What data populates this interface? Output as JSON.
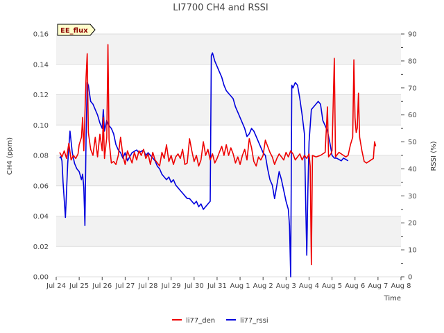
{
  "chart_data": {
    "type": "line",
    "title": "LI7700 CH4 and RSSI",
    "xlabel": "Time",
    "ylabel_left": "CH4 (ppm)",
    "ylabel_right": "RSSI (%)",
    "badge": "EE_flux",
    "x_ticks": [
      "Jul 24",
      "Jul 25",
      "Jul 26",
      "Jul 27",
      "Jul 28",
      "Jul 29",
      "Jul 30",
      "Jul 31",
      "Aug 1",
      "Aug 2",
      "Aug 3",
      "Aug 4",
      "Aug 5",
      "Aug 6",
      "Aug 7",
      "Aug 8"
    ],
    "xlim": [
      0,
      15
    ],
    "ylim_left": [
      0,
      0.16
    ],
    "ylim_right": [
      0,
      90
    ],
    "y_left_ticks": [
      "0.00",
      "0.02",
      "0.04",
      "0.06",
      "0.08",
      "0.10",
      "0.12",
      "0.14",
      "0.16"
    ],
    "y_right_ticks": [
      "0",
      "10",
      "20",
      "30",
      "40",
      "50",
      "60",
      "70",
      "80",
      "90"
    ],
    "series": [
      {
        "name": "li77_den",
        "axis": "left",
        "color": "#ee0000",
        "points": [
          [
            0.15,
            0.082
          ],
          [
            0.25,
            0.079
          ],
          [
            0.35,
            0.083
          ],
          [
            0.45,
            0.078
          ],
          [
            0.55,
            0.088
          ],
          [
            0.65,
            0.077
          ],
          [
            0.75,
            0.08
          ],
          [
            0.85,
            0.078
          ],
          [
            0.95,
            0.081
          ],
          [
            1.0,
            0.087
          ],
          [
            1.1,
            0.092
          ],
          [
            1.15,
            0.105
          ],
          [
            1.2,
            0.083
          ],
          [
            1.3,
            0.132
          ],
          [
            1.35,
            0.147
          ],
          [
            1.4,
            0.095
          ],
          [
            1.5,
            0.084
          ],
          [
            1.6,
            0.08
          ],
          [
            1.7,
            0.092
          ],
          [
            1.8,
            0.079
          ],
          [
            1.9,
            0.094
          ],
          [
            2.0,
            0.083
          ],
          [
            2.05,
            0.105
          ],
          [
            2.1,
            0.078
          ],
          [
            2.2,
            0.092
          ],
          [
            2.25,
            0.153
          ],
          [
            2.3,
            0.09
          ],
          [
            2.4,
            0.075
          ],
          [
            2.5,
            0.076
          ],
          [
            2.6,
            0.074
          ],
          [
            2.7,
            0.08
          ],
          [
            2.8,
            0.092
          ],
          [
            2.9,
            0.08
          ],
          [
            3.0,
            0.074
          ],
          [
            3.1,
            0.083
          ],
          [
            3.2,
            0.079
          ],
          [
            3.3,
            0.075
          ],
          [
            3.4,
            0.082
          ],
          [
            3.5,
            0.077
          ],
          [
            3.6,
            0.083
          ],
          [
            3.7,
            0.08
          ],
          [
            3.8,
            0.084
          ],
          [
            3.9,
            0.078
          ],
          [
            4.0,
            0.081
          ],
          [
            4.1,
            0.074
          ],
          [
            4.2,
            0.082
          ],
          [
            4.3,
            0.077
          ],
          [
            4.4,
            0.075
          ],
          [
            4.5,
            0.073
          ],
          [
            4.6,
            0.082
          ],
          [
            4.7,
            0.078
          ],
          [
            4.8,
            0.087
          ],
          [
            4.9,
            0.076
          ],
          [
            5.0,
            0.08
          ],
          [
            5.1,
            0.074
          ],
          [
            5.2,
            0.079
          ],
          [
            5.3,
            0.081
          ],
          [
            5.4,
            0.078
          ],
          [
            5.5,
            0.084
          ],
          [
            5.6,
            0.074
          ],
          [
            5.7,
            0.075
          ],
          [
            5.8,
            0.091
          ],
          [
            5.9,
            0.083
          ],
          [
            6.0,
            0.076
          ],
          [
            6.1,
            0.08
          ],
          [
            6.2,
            0.073
          ],
          [
            6.3,
            0.077
          ],
          [
            6.4,
            0.089
          ],
          [
            6.5,
            0.08
          ],
          [
            6.6,
            0.084
          ],
          [
            6.7,
            0.077
          ],
          [
            6.8,
            0.081
          ],
          [
            6.9,
            0.075
          ],
          [
            7.0,
            0.078
          ],
          [
            7.1,
            0.082
          ],
          [
            7.2,
            0.086
          ],
          [
            7.3,
            0.08
          ],
          [
            7.4,
            0.087
          ],
          [
            7.5,
            0.08
          ],
          [
            7.6,
            0.085
          ],
          [
            7.7,
            0.081
          ],
          [
            7.8,
            0.075
          ],
          [
            7.9,
            0.079
          ],
          [
            8.0,
            0.074
          ],
          [
            8.1,
            0.08
          ],
          [
            8.2,
            0.084
          ],
          [
            8.3,
            0.077
          ],
          [
            8.4,
            0.091
          ],
          [
            8.5,
            0.085
          ],
          [
            8.6,
            0.076
          ],
          [
            8.7,
            0.073
          ],
          [
            8.8,
            0.079
          ],
          [
            8.9,
            0.077
          ],
          [
            9.0,
            0.08
          ],
          [
            9.1,
            0.09
          ],
          [
            9.2,
            0.086
          ],
          [
            9.3,
            0.082
          ],
          [
            9.4,
            0.079
          ],
          [
            9.5,
            0.074
          ],
          [
            9.6,
            0.078
          ],
          [
            9.7,
            0.081
          ],
          [
            9.8,
            0.079
          ],
          [
            9.9,
            0.077
          ],
          [
            10.0,
            0.082
          ],
          [
            10.1,
            0.079
          ],
          [
            10.2,
            0.083
          ],
          [
            10.3,
            0.081
          ],
          [
            10.4,
            0.077
          ],
          [
            10.5,
            0.079
          ],
          [
            10.6,
            0.081
          ],
          [
            10.7,
            0.077
          ],
          [
            10.8,
            0.08
          ],
          [
            10.9,
            0.078
          ],
          [
            11.0,
            0.081
          ],
          [
            11.05,
            0.073
          ],
          [
            11.1,
            0.008
          ],
          [
            11.15,
            0.08
          ],
          [
            11.3,
            0.079
          ],
          [
            11.5,
            0.08
          ],
          [
            11.7,
            0.082
          ],
          [
            11.8,
            0.112
          ],
          [
            11.85,
            0.079
          ],
          [
            11.95,
            0.081
          ],
          [
            12.0,
            0.083
          ],
          [
            12.1,
            0.144
          ],
          [
            12.15,
            0.079
          ],
          [
            12.3,
            0.082
          ],
          [
            12.5,
            0.08
          ],
          [
            12.6,
            0.079
          ],
          [
            12.7,
            0.08
          ],
          [
            12.8,
            0.087
          ],
          [
            12.9,
            0.092
          ],
          [
            12.95,
            0.143
          ],
          [
            13.0,
            0.105
          ],
          [
            13.05,
            0.095
          ],
          [
            13.1,
            0.098
          ],
          [
            13.15,
            0.121
          ],
          [
            13.2,
            0.092
          ],
          [
            13.3,
            0.083
          ],
          [
            13.4,
            0.076
          ],
          [
            13.5,
            0.075
          ],
          [
            13.6,
            0.076
          ],
          [
            13.7,
            0.077
          ],
          [
            13.8,
            0.078
          ],
          [
            13.85,
            0.089
          ],
          [
            13.9,
            0.086
          ]
        ]
      },
      {
        "name": "li77_rssi",
        "axis": "right",
        "color": "#0000dd",
        "points": [
          [
            0.15,
            44
          ],
          [
            0.2,
            44.5
          ],
          [
            0.25,
            43
          ],
          [
            0.3,
            35
          ],
          [
            0.4,
            22
          ],
          [
            0.5,
            42
          ],
          [
            0.6,
            54
          ],
          [
            0.7,
            46
          ],
          [
            0.8,
            42
          ],
          [
            0.9,
            40
          ],
          [
            1.0,
            39
          ],
          [
            1.1,
            36
          ],
          [
            1.15,
            38
          ],
          [
            1.2,
            33
          ],
          [
            1.25,
            19
          ],
          [
            1.3,
            52
          ],
          [
            1.35,
            72
          ],
          [
            1.4,
            71
          ],
          [
            1.45,
            68
          ],
          [
            1.5,
            65
          ],
          [
            1.6,
            64
          ],
          [
            1.7,
            62
          ],
          [
            1.8,
            60
          ],
          [
            1.9,
            57
          ],
          [
            2.0,
            55
          ],
          [
            2.05,
            62
          ],
          [
            2.1,
            54
          ],
          [
            2.2,
            58
          ],
          [
            2.3,
            56
          ],
          [
            2.4,
            55
          ],
          [
            2.5,
            53
          ],
          [
            2.6,
            49
          ],
          [
            2.7,
            47
          ],
          [
            2.8,
            46
          ],
          [
            2.9,
            44
          ],
          [
            3.0,
            46
          ],
          [
            3.1,
            43
          ],
          [
            3.3,
            46
          ],
          [
            3.5,
            47
          ],
          [
            3.6,
            46
          ],
          [
            3.8,
            47
          ],
          [
            3.9,
            45
          ],
          [
            4.0,
            46
          ],
          [
            4.1,
            45
          ],
          [
            4.2,
            44
          ],
          [
            4.3,
            43
          ],
          [
            4.4,
            41
          ],
          [
            4.5,
            40
          ],
          [
            4.6,
            38
          ],
          [
            4.7,
            37
          ],
          [
            4.8,
            36
          ],
          [
            4.9,
            37
          ],
          [
            5.0,
            35
          ],
          [
            5.1,
            36
          ],
          [
            5.2,
            34
          ],
          [
            5.3,
            33
          ],
          [
            5.4,
            32
          ],
          [
            5.5,
            31
          ],
          [
            5.6,
            30
          ],
          [
            5.7,
            29
          ],
          [
            5.8,
            29
          ],
          [
            5.9,
            28
          ],
          [
            6.0,
            27
          ],
          [
            6.1,
            28
          ],
          [
            6.2,
            26
          ],
          [
            6.3,
            27
          ],
          [
            6.4,
            25
          ],
          [
            6.5,
            26
          ],
          [
            6.6,
            27
          ],
          [
            6.7,
            28
          ],
          [
            6.75,
            82
          ],
          [
            6.8,
            83
          ],
          [
            6.9,
            80
          ],
          [
            7.0,
            78
          ],
          [
            7.1,
            76
          ],
          [
            7.2,
            74
          ],
          [
            7.3,
            71
          ],
          [
            7.4,
            69
          ],
          [
            7.5,
            68
          ],
          [
            7.6,
            67
          ],
          [
            7.7,
            66
          ],
          [
            7.8,
            63
          ],
          [
            7.9,
            61
          ],
          [
            8.0,
            59
          ],
          [
            8.1,
            57
          ],
          [
            8.2,
            55
          ],
          [
            8.3,
            52
          ],
          [
            8.4,
            53
          ],
          [
            8.5,
            55
          ],
          [
            8.6,
            54
          ],
          [
            8.7,
            52
          ],
          [
            8.8,
            50
          ],
          [
            8.9,
            48
          ],
          [
            9.0,
            46
          ],
          [
            9.1,
            45
          ],
          [
            9.2,
            40
          ],
          [
            9.3,
            36
          ],
          [
            9.4,
            34
          ],
          [
            9.5,
            29
          ],
          [
            9.6,
            34
          ],
          [
            9.7,
            39
          ],
          [
            9.8,
            36
          ],
          [
            9.9,
            32
          ],
          [
            10.0,
            28
          ],
          [
            10.1,
            25
          ],
          [
            10.15,
            19
          ],
          [
            10.2,
            0
          ],
          [
            10.25,
            71
          ],
          [
            10.3,
            70
          ],
          [
            10.4,
            72
          ],
          [
            10.5,
            71
          ],
          [
            10.6,
            66
          ],
          [
            10.7,
            60
          ],
          [
            10.8,
            53
          ],
          [
            10.85,
            29
          ],
          [
            10.9,
            8
          ],
          [
            10.95,
            32
          ],
          [
            11.0,
            50
          ],
          [
            11.1,
            62
          ],
          [
            11.2,
            63
          ],
          [
            11.3,
            64
          ],
          [
            11.4,
            65
          ],
          [
            11.5,
            64
          ],
          [
            11.6,
            58
          ],
          [
            11.7,
            56
          ],
          [
            11.8,
            54
          ],
          [
            11.9,
            50
          ],
          [
            12.0,
            45
          ],
          [
            12.1,
            44
          ],
          [
            12.2,
            44
          ],
          [
            12.3,
            43.5
          ],
          [
            12.4,
            43
          ],
          [
            12.5,
            44
          ],
          [
            12.6,
            43.5
          ],
          [
            12.7,
            43
          ]
        ]
      }
    ]
  },
  "legend": [
    {
      "label": "li77_den",
      "color": "#ee0000"
    },
    {
      "label": "li77_rssi",
      "color": "#0000dd"
    }
  ]
}
